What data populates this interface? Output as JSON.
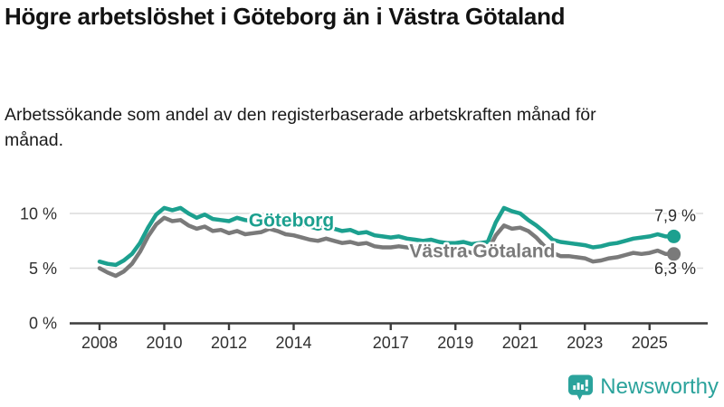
{
  "header": {
    "title": "Högre arbetslöshet i Göteborg än i Västra Götaland",
    "subtitle": "Arbetssökande som andel av den registerbaserade arbetskraften månad för månad."
  },
  "chart_data": {
    "type": "line",
    "x_start": 2008,
    "x_step": 0.25,
    "xlabel": "",
    "ylabel": "",
    "ylim": [
      0,
      11
    ],
    "grid": "horizontal",
    "legend_position": "inline-labels",
    "yticks": [
      {
        "value": 0,
        "label": "0 %"
      },
      {
        "value": 5,
        "label": "5 %"
      },
      {
        "value": 10,
        "label": "10 %"
      }
    ],
    "xticks": [
      {
        "year": 2008,
        "label": "2008"
      },
      {
        "year": 2010,
        "label": "2010"
      },
      {
        "year": 2012,
        "label": "2012"
      },
      {
        "year": 2014,
        "label": "2014"
      },
      {
        "year": 2017,
        "label": "2017"
      },
      {
        "year": 2019,
        "label": "2019"
      },
      {
        "year": 2021,
        "label": "2021"
      },
      {
        "year": 2023,
        "label": "2023"
      },
      {
        "year": 2025,
        "label": "2025"
      }
    ],
    "series": [
      {
        "name": "Göteborg",
        "color": "#1ca08f",
        "end_label": "7,9 %",
        "label_pos": {
          "year": 2013.93,
          "value": 9.42
        },
        "values": [
          5.6,
          5.4,
          5.3,
          5.7,
          6.3,
          7.3,
          8.7,
          9.9,
          10.5,
          10.3,
          10.5,
          10.0,
          9.6,
          9.9,
          9.5,
          9.4,
          9.3,
          9.6,
          9.4,
          9.3,
          9.2,
          9.5,
          9.3,
          9.0,
          9.2,
          9.0,
          8.8,
          8.6,
          8.8,
          8.6,
          8.4,
          8.5,
          8.2,
          8.3,
          8.0,
          7.9,
          7.8,
          7.9,
          7.7,
          7.6,
          7.5,
          7.6,
          7.4,
          7.3,
          7.3,
          7.4,
          7.2,
          7.3,
          7.4,
          9.2,
          10.5,
          10.2,
          10.0,
          9.4,
          8.9,
          8.3,
          7.6,
          7.4,
          7.3,
          7.2,
          7.1,
          6.9,
          7.0,
          7.2,
          7.3,
          7.5,
          7.7,
          7.8,
          7.9,
          8.1,
          7.9,
          7.9
        ]
      },
      {
        "name": "Västra Götaland",
        "color": "#7a7a7a",
        "end_label": "6,3 %",
        "label_pos": {
          "year": 2019.83,
          "value": 6.6
        },
        "values": [
          5.0,
          4.6,
          4.3,
          4.7,
          5.4,
          6.5,
          7.9,
          9.0,
          9.6,
          9.3,
          9.4,
          8.9,
          8.6,
          8.8,
          8.4,
          8.5,
          8.2,
          8.4,
          8.1,
          8.2,
          8.3,
          8.6,
          8.4,
          8.1,
          8.0,
          7.8,
          7.6,
          7.5,
          7.7,
          7.5,
          7.3,
          7.4,
          7.2,
          7.3,
          7.0,
          6.9,
          6.9,
          7.0,
          6.9,
          6.8,
          6.7,
          6.8,
          6.6,
          6.5,
          6.5,
          6.6,
          6.4,
          6.5,
          6.6,
          8.0,
          8.9,
          8.6,
          8.7,
          8.4,
          7.8,
          7.0,
          6.4,
          6.1,
          6.1,
          6.0,
          5.9,
          5.6,
          5.7,
          5.9,
          6.0,
          6.2,
          6.4,
          6.3,
          6.4,
          6.6,
          6.3,
          6.3
        ]
      }
    ],
    "colors": {
      "grid": "#dcdcdc",
      "axis": "#3c3c3c",
      "tick_label": "#303030",
      "value_label": "#2b2b2b",
      "label_halo": "#ffffff"
    }
  },
  "footer": {
    "brand": "Newsworthy",
    "brand_color": "#2ba39c",
    "logo_icon": "bar-chart-speech-bubble-icon"
  }
}
